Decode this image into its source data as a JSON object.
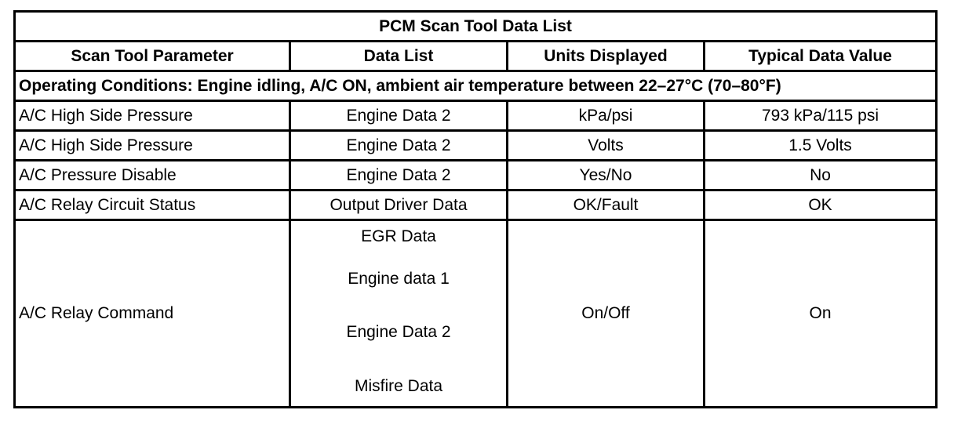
{
  "table": {
    "title": "PCM Scan Tool Data List",
    "headers": [
      "Scan Tool Parameter",
      "Data List",
      "Units Displayed",
      "Typical Data Value"
    ],
    "operating_conditions": "Operating Conditions: Engine idling, A/C ON, ambient air temperature between 22–27°C (70–80°F)",
    "rows": [
      {
        "parameter": "A/C High Side Pressure",
        "data_list": "Engine Data 2",
        "units": "kPa/psi",
        "typical": "793 kPa/115 psi"
      },
      {
        "parameter": "A/C High Side Pressure",
        "data_list": "Engine Data 2",
        "units": "Volts",
        "typical": "1.5 Volts"
      },
      {
        "parameter": "A/C Pressure Disable",
        "data_list": "Engine Data 2",
        "units": "Yes/No",
        "typical": "No"
      },
      {
        "parameter": "A/C Relay Circuit Status",
        "data_list": "Output Driver Data",
        "units": "OK/Fault",
        "typical": "OK"
      }
    ],
    "last_row": {
      "parameter": "A/C Relay Command",
      "data_lists": [
        "EGR Data",
        "Engine data 1",
        "Engine Data 2",
        "Misfire Data"
      ],
      "units": "On/Off",
      "typical": "On"
    }
  }
}
